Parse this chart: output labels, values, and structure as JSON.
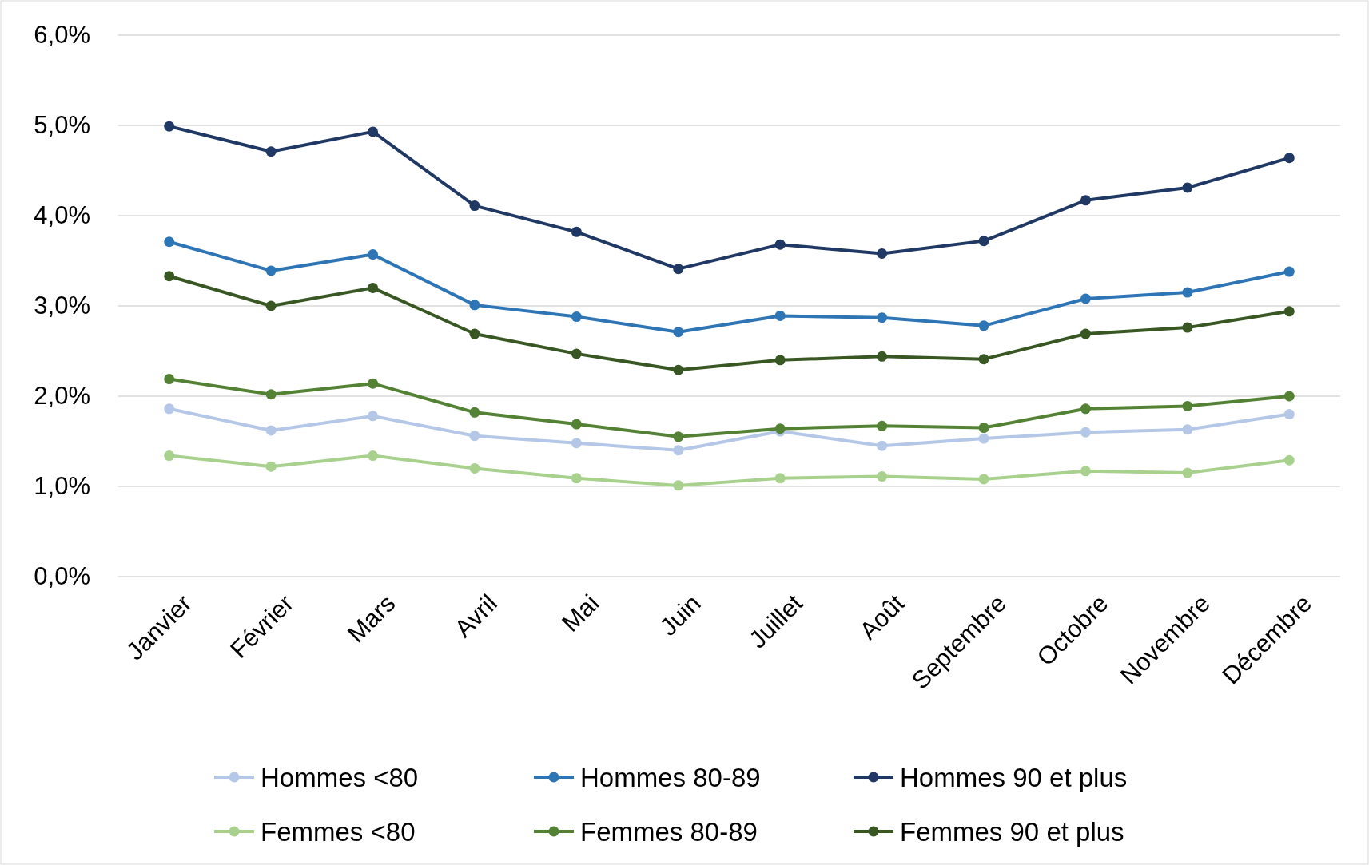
{
  "chart_data": {
    "type": "line",
    "categories": [
      "Janvier",
      "Février",
      "Mars",
      "Avril",
      "Mai",
      "Juin",
      "Juillet",
      "Août",
      "Septembre",
      "Octobre",
      "Novembre",
      "Décembre"
    ],
    "ylim": [
      0,
      6
    ],
    "yticks": [
      {
        "value": 0,
        "label": "0,0%"
      },
      {
        "value": 1,
        "label": "1,0%"
      },
      {
        "value": 2,
        "label": "2,0%"
      },
      {
        "value": 3,
        "label": "3,0%"
      },
      {
        "value": 4,
        "label": "4,0%"
      },
      {
        "value": 5,
        "label": "5,0%"
      },
      {
        "value": 6,
        "label": "6,0%"
      }
    ],
    "grid": "y",
    "legend": "bottom",
    "marker": "circle",
    "line_style": "solid",
    "series": [
      {
        "name": "Hommes <80",
        "color": "#b4c7e7",
        "values": [
          1.86,
          1.62,
          1.78,
          1.56,
          1.48,
          1.4,
          1.61,
          1.45,
          1.53,
          1.6,
          1.63,
          1.8
        ]
      },
      {
        "name": "Hommes 80-89",
        "color": "#2e75b6",
        "values": [
          3.71,
          3.39,
          3.57,
          3.01,
          2.88,
          2.71,
          2.89,
          2.87,
          2.78,
          3.08,
          3.15,
          3.38
        ]
      },
      {
        "name": "Hommes 90 et plus",
        "color": "#203864",
        "values": [
          4.99,
          4.71,
          4.93,
          4.11,
          3.82,
          3.41,
          3.68,
          3.58,
          3.72,
          4.17,
          4.31,
          4.64
        ]
      },
      {
        "name": "Femmes <80",
        "color": "#a9d18e",
        "values": [
          1.34,
          1.22,
          1.34,
          1.2,
          1.09,
          1.01,
          1.09,
          1.11,
          1.08,
          1.17,
          1.15,
          1.29
        ]
      },
      {
        "name": "Femmes 80-89",
        "color": "#548235",
        "values": [
          2.19,
          2.02,
          2.14,
          1.82,
          1.69,
          1.55,
          1.64,
          1.67,
          1.65,
          1.86,
          1.89,
          2.0
        ]
      },
      {
        "name": "Femmes 90 et plus",
        "color": "#385723",
        "values": [
          3.33,
          3.0,
          3.2,
          2.69,
          2.47,
          2.29,
          2.4,
          2.44,
          2.41,
          2.69,
          2.76,
          2.94
        ]
      }
    ]
  }
}
